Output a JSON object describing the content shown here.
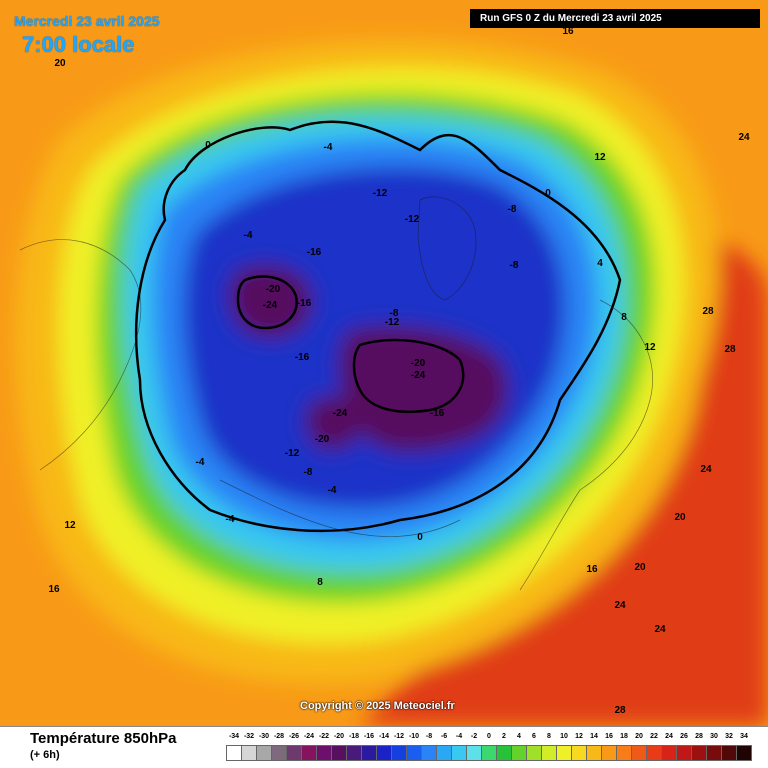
{
  "header": {
    "date_label": "Mercredi 23 avril 2025",
    "time_label": "7:00 locale",
    "run_label": "Run GFS 0 Z du Mercredi 23 avril 2025"
  },
  "footer": {
    "variable_title": "Température 850hPa",
    "offset_label": "(+ 6h)",
    "copyright": "Copyright © 2025 Meteociel.fr"
  },
  "legend": {
    "levels": [
      {
        "label": "-34",
        "color": "#ffffff"
      },
      {
        "label": "-32",
        "color": "#d6d6d6"
      },
      {
        "label": "-30",
        "color": "#a8a8a8"
      },
      {
        "label": "-28",
        "color": "#7d6a7d"
      },
      {
        "label": "-26",
        "color": "#6e3a6e"
      },
      {
        "label": "-24",
        "color": "#85135f"
      },
      {
        "label": "-22",
        "color": "#6d0f6d"
      },
      {
        "label": "-20",
        "color": "#56105f"
      },
      {
        "label": "-18",
        "color": "#4a1a7a"
      },
      {
        "label": "-16",
        "color": "#2a1aa0"
      },
      {
        "label": "-14",
        "color": "#1a22c8"
      },
      {
        "label": "-12",
        "color": "#1440e0"
      },
      {
        "label": "-10",
        "color": "#1a5ef0"
      },
      {
        "label": "-8",
        "color": "#2a84f5"
      },
      {
        "label": "-6",
        "color": "#2aa8f5"
      },
      {
        "label": "-4",
        "color": "#38c8f0"
      },
      {
        "label": "-2",
        "color": "#5ee0e8"
      },
      {
        "label": "0",
        "color": "#3ad86e"
      },
      {
        "label": "2",
        "color": "#28c23a"
      },
      {
        "label": "4",
        "color": "#64d22a"
      },
      {
        "label": "6",
        "color": "#a0e028"
      },
      {
        "label": "8",
        "color": "#d2ec28"
      },
      {
        "label": "10",
        "color": "#f0f028"
      },
      {
        "label": "12",
        "color": "#f8d820"
      },
      {
        "label": "14",
        "color": "#f8b818"
      },
      {
        "label": "16",
        "color": "#f89a18"
      },
      {
        "label": "18",
        "color": "#f87c18"
      },
      {
        "label": "20",
        "color": "#f05a18"
      },
      {
        "label": "22",
        "color": "#e83c18"
      },
      {
        "label": "24",
        "color": "#d82418"
      },
      {
        "label": "26",
        "color": "#c01818"
      },
      {
        "label": "28",
        "color": "#9c1010"
      },
      {
        "label": "30",
        "color": "#780c0c"
      },
      {
        "label": "32",
        "color": "#500808"
      },
      {
        "label": "34",
        "color": "#200404"
      }
    ]
  },
  "map_labels": [
    "-24",
    "-20",
    "-16",
    "-12",
    "-8",
    "-4",
    "0",
    "4",
    "8",
    "12",
    "16",
    "20",
    "24",
    "28"
  ],
  "colors": {
    "very_cold": "#56105f",
    "cold": "#1a3ad0",
    "cool": "#2a84f5",
    "mild": "#38c8f0",
    "green": "#3ad86e",
    "yellow": "#f0f028",
    "orange": "#f89a18",
    "warm": "#f05a18",
    "hot": "#c01818"
  }
}
